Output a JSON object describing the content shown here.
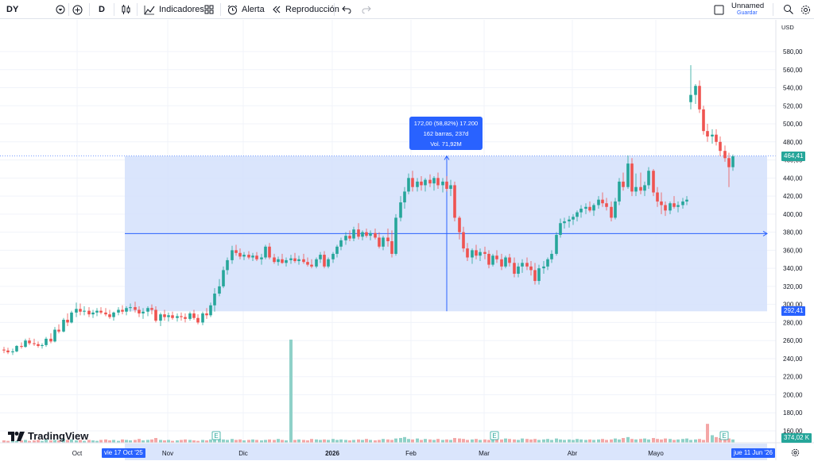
{
  "toolbar": {
    "symbol": "DY",
    "interval": "D",
    "indicators_label": "Indicadores",
    "alert_label": "Alerta",
    "replay_label": "Reproducción",
    "layout_name": "Unnamed",
    "save_label": "Guardar"
  },
  "price_axis": {
    "currency": "USD",
    "ticks": [
      "580,00",
      "560,00",
      "540,00",
      "520,00",
      "500,00",
      "480,00",
      "460,00",
      "440,00",
      "420,00",
      "400,00",
      "380,00",
      "360,00",
      "340,00",
      "320,00",
      "300,00",
      "280,00",
      "260,00",
      "240,00",
      "220,00",
      "200,00",
      "180,00",
      "160,00"
    ],
    "last_price_label": "464,41",
    "range_low_label": "292,41",
    "volume_label": "374,02 K"
  },
  "time_axis": {
    "ticks": [
      "Oct",
      "Nov",
      "Dic",
      "2026",
      "Feb",
      "Mar",
      "Abr",
      "Mayo"
    ],
    "start_flag": "vie 17 Oct '25",
    "end_flag": "jue 11 Jun '26"
  },
  "measure_tooltip": {
    "line1": "172,00 (58,82%) 17.200",
    "line2": "162 barras, 237d",
    "line3": "Vol. 71,92M"
  },
  "brand": {
    "name": "TradingView"
  },
  "colors": {
    "up": "#26a69a",
    "down": "#ef5350",
    "up_vol": "#8fd1c8",
    "down_vol": "#f4a6a6",
    "measure_fill": "#d4e0fb",
    "accent": "#2962ff"
  },
  "chart_data": {
    "type": "candlestick",
    "y_range": [
      150,
      590
    ],
    "candles": [
      [
        250,
        253,
        246,
        249
      ],
      [
        249,
        252,
        245,
        247
      ],
      [
        247,
        251,
        244,
        248
      ],
      [
        248,
        255,
        247,
        254
      ],
      [
        254,
        258,
        251,
        253
      ],
      [
        253,
        262,
        252,
        260
      ],
      [
        260,
        263,
        255,
        257
      ],
      [
        257,
        262,
        254,
        256
      ],
      [
        256,
        259,
        252,
        254
      ],
      [
        254,
        257,
        251,
        255
      ],
      [
        255,
        264,
        253,
        262
      ],
      [
        262,
        268,
        257,
        259
      ],
      [
        259,
        275,
        258,
        272
      ],
      [
        272,
        278,
        268,
        270
      ],
      [
        270,
        285,
        269,
        283
      ],
      [
        283,
        290,
        276,
        280
      ],
      [
        280,
        293,
        279,
        291
      ],
      [
        291,
        302,
        286,
        295
      ],
      [
        295,
        301,
        288,
        292
      ],
      [
        292,
        298,
        288,
        293
      ],
      [
        293,
        297,
        286,
        289
      ],
      [
        289,
        294,
        285,
        291
      ],
      [
        291,
        296,
        287,
        293
      ],
      [
        293,
        297,
        289,
        291
      ],
      [
        291,
        296,
        287,
        289
      ],
      [
        289,
        294,
        284,
        286
      ],
      [
        286,
        292,
        282,
        291
      ],
      [
        291,
        297,
        288,
        294
      ],
      [
        294,
        299,
        289,
        292
      ],
      [
        292,
        298,
        288,
        296
      ],
      [
        296,
        301,
        292,
        297
      ],
      [
        297,
        303,
        291,
        294
      ],
      [
        294,
        298,
        286,
        290
      ],
      [
        290,
        296,
        284,
        292
      ],
      [
        292,
        298,
        287,
        296
      ],
      [
        296,
        300,
        289,
        294
      ],
      [
        294,
        298,
        280,
        282
      ],
      [
        282,
        291,
        276,
        289
      ],
      [
        289,
        294,
        282,
        286
      ],
      [
        286,
        291,
        281,
        288
      ],
      [
        288,
        292,
        283,
        285
      ],
      [
        285,
        290,
        281,
        287
      ],
      [
        287,
        291,
        282,
        286
      ],
      [
        286,
        290,
        280,
        284
      ],
      [
        284,
        292,
        282,
        290
      ],
      [
        290,
        294,
        283,
        285
      ],
      [
        285,
        289,
        278,
        280
      ],
      [
        280,
        292,
        277,
        290
      ],
      [
        290,
        296,
        284,
        288
      ],
      [
        288,
        302,
        286,
        299
      ],
      [
        299,
        318,
        292,
        312
      ],
      [
        312,
        328,
        309,
        320
      ],
      [
        320,
        342,
        318,
        338
      ],
      [
        338,
        352,
        333,
        349
      ],
      [
        349,
        365,
        345,
        360
      ],
      [
        360,
        366,
        354,
        357
      ],
      [
        357,
        362,
        350,
        353
      ],
      [
        353,
        358,
        349,
        355
      ],
      [
        355,
        359,
        350,
        352
      ],
      [
        352,
        357,
        348,
        354
      ],
      [
        354,
        358,
        348,
        350
      ],
      [
        350,
        356,
        344,
        352
      ],
      [
        352,
        366,
        350,
        364
      ],
      [
        364,
        368,
        350,
        352
      ],
      [
        352,
        356,
        345,
        347
      ],
      [
        347,
        353,
        343,
        350
      ],
      [
        350,
        356,
        345,
        346
      ],
      [
        346,
        352,
        342,
        349
      ],
      [
        349,
        355,
        345,
        351
      ],
      [
        351,
        357,
        346,
        348
      ],
      [
        348,
        354,
        344,
        350
      ],
      [
        350,
        356,
        345,
        347
      ],
      [
        347,
        352,
        342,
        344
      ],
      [
        344,
        350,
        340,
        342
      ],
      [
        342,
        352,
        340,
        350
      ],
      [
        350,
        358,
        346,
        355
      ],
      [
        355,
        359,
        340,
        342
      ],
      [
        342,
        352,
        340,
        350
      ],
      [
        350,
        358,
        346,
        356
      ],
      [
        356,
        366,
        352,
        364
      ],
      [
        364,
        374,
        360,
        371
      ],
      [
        371,
        380,
        366,
        376
      ],
      [
        376,
        382,
        370,
        373
      ],
      [
        373,
        386,
        370,
        383
      ],
      [
        383,
        390,
        372,
        375
      ],
      [
        375,
        382,
        371,
        380
      ],
      [
        380,
        384,
        374,
        376
      ],
      [
        376,
        382,
        371,
        379
      ],
      [
        379,
        384,
        372,
        374
      ],
      [
        374,
        380,
        362,
        364
      ],
      [
        364,
        376,
        360,
        374
      ],
      [
        374,
        384,
        364,
        370
      ],
      [
        370,
        382,
        352,
        356
      ],
      [
        356,
        400,
        354,
        396
      ],
      [
        396,
        420,
        392,
        413
      ],
      [
        413,
        430,
        406,
        425
      ],
      [
        425,
        445,
        422,
        440
      ],
      [
        440,
        448,
        425,
        430
      ],
      [
        430,
        440,
        425,
        436
      ],
      [
        436,
        442,
        426,
        432
      ],
      [
        432,
        440,
        425,
        438
      ],
      [
        438,
        444,
        430,
        434
      ],
      [
        434,
        442,
        426,
        440
      ],
      [
        440,
        446,
        428,
        432
      ],
      [
        432,
        440,
        424,
        436
      ],
      [
        436,
        442,
        425,
        428
      ],
      [
        428,
        438,
        420,
        432
      ],
      [
        432,
        436,
        392,
        396
      ],
      [
        396,
        398,
        372,
        380
      ],
      [
        380,
        386,
        358,
        362
      ],
      [
        362,
        368,
        348,
        352
      ],
      [
        352,
        362,
        345,
        360
      ],
      [
        360,
        366,
        350,
        354
      ],
      [
        354,
        362,
        348,
        358
      ],
      [
        358,
        364,
        350,
        356
      ],
      [
        356,
        360,
        340,
        344
      ],
      [
        344,
        356,
        342,
        354
      ],
      [
        354,
        360,
        346,
        350
      ],
      [
        350,
        356,
        338,
        342
      ],
      [
        342,
        354,
        340,
        352
      ],
      [
        352,
        356,
        342,
        346
      ],
      [
        346,
        352,
        330,
        334
      ],
      [
        334,
        346,
        330,
        342
      ],
      [
        342,
        350,
        335,
        346
      ],
      [
        346,
        352,
        338,
        342
      ],
      [
        342,
        348,
        332,
        338
      ],
      [
        338,
        346,
        322,
        326
      ],
      [
        326,
        344,
        322,
        340
      ],
      [
        340,
        348,
        334,
        342
      ],
      [
        342,
        352,
        338,
        350
      ],
      [
        350,
        360,
        346,
        356
      ],
      [
        356,
        380,
        354,
        377
      ],
      [
        377,
        395,
        374,
        390
      ],
      [
        390,
        396,
        384,
        392
      ],
      [
        392,
        398,
        385,
        394
      ],
      [
        394,
        400,
        388,
        397
      ],
      [
        397,
        404,
        392,
        402
      ],
      [
        402,
        410,
        396,
        406
      ],
      [
        406,
        412,
        400,
        408
      ],
      [
        408,
        414,
        402,
        404
      ],
      [
        404,
        412,
        398,
        410
      ],
      [
        410,
        420,
        406,
        416
      ],
      [
        416,
        424,
        408,
        412
      ],
      [
        412,
        418,
        404,
        408
      ],
      [
        408,
        414,
        392,
        396
      ],
      [
        396,
        418,
        394,
        414
      ],
      [
        414,
        440,
        410,
        436
      ],
      [
        436,
        446,
        426,
        430
      ],
      [
        430,
        465,
        428,
        456
      ],
      [
        456,
        462,
        420,
        425
      ],
      [
        425,
        445,
        420,
        430
      ],
      [
        430,
        446,
        422,
        426
      ],
      [
        426,
        436,
        420,
        432
      ],
      [
        432,
        452,
        428,
        448
      ],
      [
        448,
        450,
        420,
        424
      ],
      [
        424,
        430,
        408,
        414
      ],
      [
        414,
        424,
        400,
        410
      ],
      [
        410,
        414,
        398,
        404
      ],
      [
        404,
        414,
        400,
        412
      ],
      [
        412,
        420,
        406,
        408
      ],
      [
        408,
        414,
        402,
        410
      ],
      [
        410,
        418,
        406,
        414
      ],
      [
        414,
        420,
        410,
        416
      ],
      [
        524,
        565,
        516,
        532
      ],
      [
        532,
        544,
        522,
        542
      ],
      [
        542,
        548,
        512,
        516
      ],
      [
        516,
        520,
        488,
        492
      ],
      [
        492,
        500,
        480,
        486
      ],
      [
        486,
        494,
        478,
        488
      ],
      [
        488,
        494,
        476,
        480
      ],
      [
        480,
        486,
        464,
        470
      ],
      [
        470,
        476,
        458,
        462
      ],
      [
        462,
        468,
        430,
        452
      ],
      [
        452,
        466,
        448,
        464
      ]
    ],
    "candle_x": [
      5,
      10,
      16,
      21,
      27,
      32,
      37,
      43,
      48,
      53,
      58,
      64,
      69,
      74,
      80,
      85,
      90,
      96,
      101,
      106,
      112,
      117,
      122,
      127,
      133,
      138,
      143,
      149,
      154,
      159,
      164,
      170,
      175,
      180,
      186,
      191,
      196,
      202,
      207,
      212,
      217,
      223,
      228,
      233,
      239,
      244,
      249,
      255,
      260,
      265,
      270,
      276,
      281,
      286,
      292,
      297,
      302,
      307,
      313,
      318,
      323,
      329,
      334,
      339,
      345,
      350,
      355,
      360,
      366,
      371,
      376,
      382,
      387,
      392,
      398,
      403,
      408,
      413,
      419,
      424,
      429,
      435,
      440,
      445,
      451,
      456,
      461,
      466,
      472,
      477,
      482,
      488,
      493,
      498,
      504,
      509,
      514,
      519,
      525,
      530,
      535,
      541,
      546,
      551,
      557,
      562,
      567,
      572,
      578,
      583,
      588,
      594,
      599,
      604,
      610,
      615,
      620,
      625,
      631,
      636,
      641,
      647,
      652,
      657,
      663,
      668,
      673,
      678,
      684,
      689,
      694,
      700,
      705,
      710,
      716,
      721,
      726,
      731,
      737,
      742,
      747,
      753,
      758,
      763,
      769,
      774,
      779,
      784,
      790,
      795,
      800,
      806,
      811,
      816,
      822,
      827,
      832,
      837,
      843,
      848,
      853,
      859,
      864,
      869,
      875,
      880,
      885,
      890,
      896,
      901,
      906,
      912,
      917,
      922,
      928,
      933,
      938,
      943,
      949,
      954,
      959,
      965
    ],
    "volume": [
      0.25,
      0.2,
      0.3,
      0.2,
      0.25,
      0.3,
      0.2,
      0.25,
      0.3,
      0.2,
      0.35,
      0.25,
      0.3,
      0.25,
      0.4,
      0.3,
      0.35,
      0.25,
      0.3,
      0.2,
      0.3,
      0.25,
      0.2,
      0.3,
      0.35,
      0.25,
      0.3,
      0.2,
      0.35,
      0.3,
      0.25,
      0.3,
      0.4,
      0.25,
      0.3,
      0.35,
      0.5,
      0.3,
      0.25,
      0.3,
      0.2,
      0.25,
      0.3,
      0.35,
      0.3,
      0.25,
      0.2,
      0.3,
      0.25,
      0.35,
      1.0,
      0.4,
      0.35,
      0.3,
      0.4,
      0.3,
      0.35,
      0.25,
      0.3,
      0.35,
      0.3,
      0.25,
      0.3,
      0.35,
      0.3,
      0.4,
      0.3,
      0.25,
      6.0,
      0.3,
      0.35,
      0.3,
      0.25,
      0.4,
      0.35,
      0.3,
      0.35,
      0.3,
      0.4,
      0.3,
      0.35,
      0.3,
      0.25,
      0.3,
      0.35,
      0.3,
      0.4,
      0.3,
      0.25,
      0.3,
      0.4,
      0.35,
      0.3,
      0.45,
      0.5,
      0.6,
      0.4,
      0.35,
      0.45,
      0.3,
      0.4,
      0.35,
      0.3,
      0.4,
      0.3,
      0.35,
      0.3,
      0.5,
      0.45,
      0.4,
      0.3,
      0.35,
      0.4,
      0.3,
      0.35,
      0.3,
      0.4,
      0.5,
      0.35,
      0.45,
      0.4,
      0.35,
      0.3,
      0.45,
      0.4,
      0.35,
      0.4,
      0.3,
      0.35,
      0.4,
      0.3,
      0.45,
      0.35,
      0.3,
      0.35,
      0.3,
      0.4,
      0.35,
      0.3,
      0.35,
      0.3,
      0.35,
      0.4,
      0.3,
      0.35,
      0.45,
      0.35,
      0.5,
      0.6,
      0.4,
      0.35,
      0.4,
      0.45,
      0.35,
      0.5,
      0.4,
      0.35,
      0.45,
      0.4,
      0.3,
      0.35,
      0.4,
      0.45,
      0.3,
      0.35,
      0.4,
      0.3,
      1.1,
      0.8,
      0.6,
      0.5,
      0.4,
      0.45,
      0.35,
      0.4,
      0.35,
      0.4,
      0.38
    ],
    "measure": {
      "x_start_label": "vie 17 Oct '25",
      "x_end_label": "jue 11 Jun '26",
      "y_low": 292.41,
      "y_high": 464.41
    },
    "last_price": 464.41,
    "earnings_markers": [
      "Nov",
      "Mar",
      "Mayo"
    ]
  }
}
